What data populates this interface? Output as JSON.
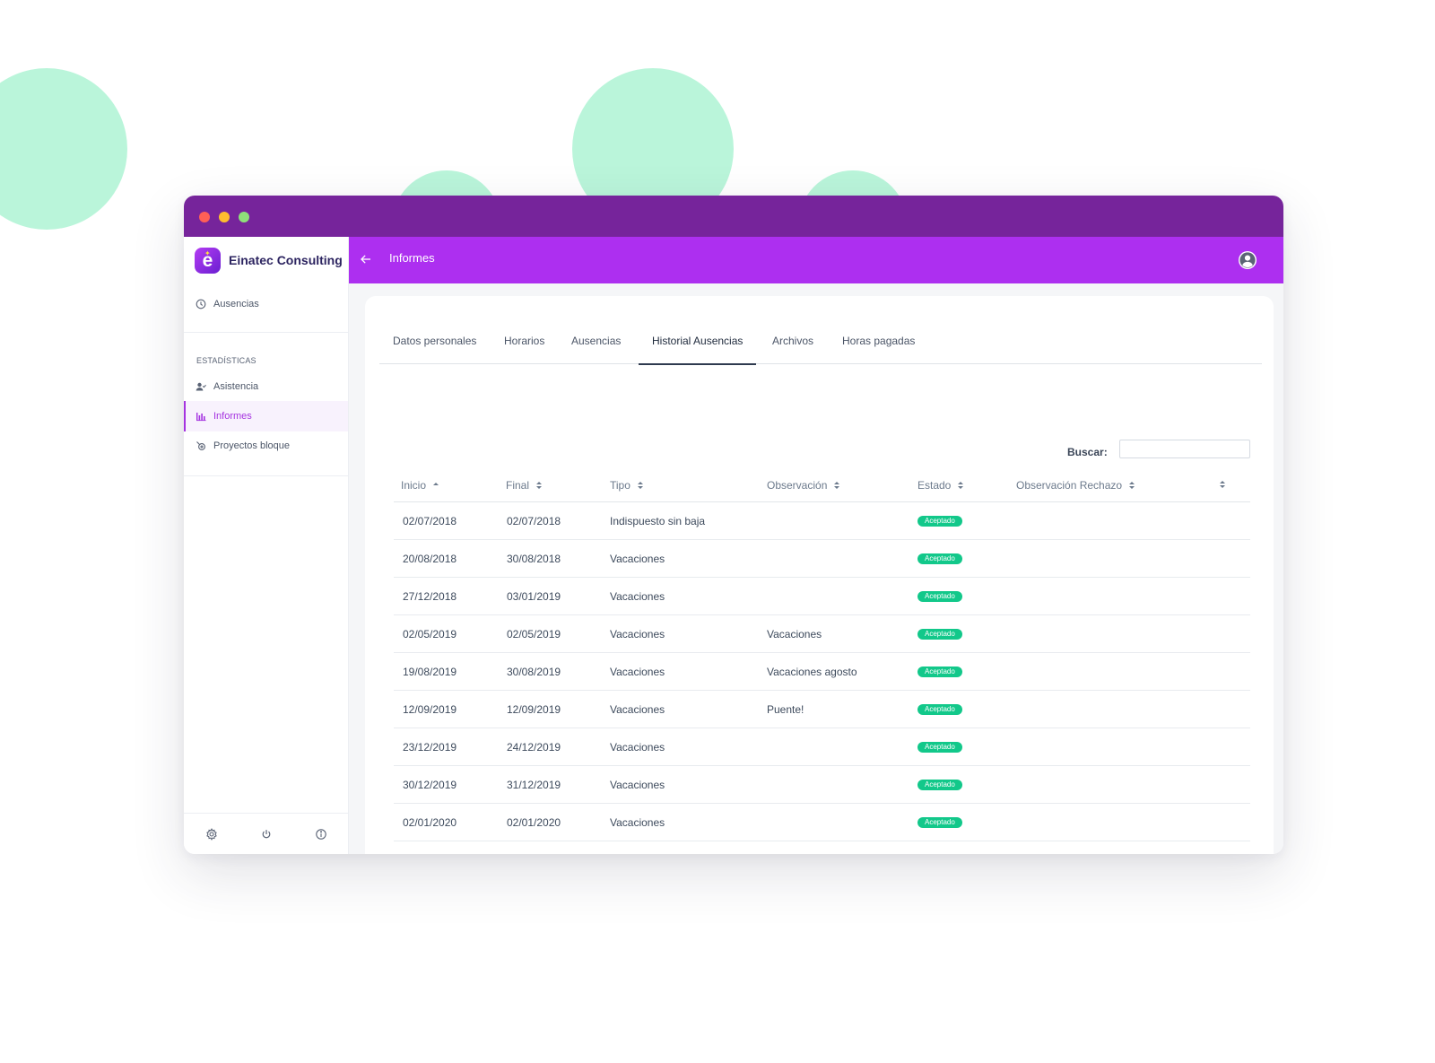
{
  "sidebar": {
    "brand": "Einatec Consulting",
    "brand_letter": "e",
    "items": [
      {
        "label": "Ausencias",
        "icon": "clock-icon"
      },
      {
        "label": "Asistencia",
        "icon": "user-check-icon"
      },
      {
        "label": "Informes",
        "icon": "bar-chart-icon",
        "active": true
      },
      {
        "label": "Proyectos bloque",
        "icon": "project-icon"
      }
    ],
    "section_label": "ESTADÍSTICAS",
    "footer_icons": [
      "gear-icon",
      "power-icon",
      "info-icon"
    ]
  },
  "topbar": {
    "title": "Informes",
    "back_icon": "arrow-left-icon",
    "user_icon": "user-circle-icon"
  },
  "tabs": [
    {
      "label": "Datos personales"
    },
    {
      "label": "Horarios"
    },
    {
      "label": "Ausencias"
    },
    {
      "label": "Historial Ausencias",
      "active": true
    },
    {
      "label": "Archivos"
    },
    {
      "label": "Horas pagadas"
    }
  ],
  "search": {
    "label": "Buscar:",
    "value": ""
  },
  "table": {
    "headers": [
      "Inicio",
      "Final",
      "Tipo",
      "Observación",
      "Estado",
      "Observación Rechazo",
      ""
    ],
    "sort": {
      "column": "Inicio",
      "direction": "asc"
    },
    "rows": [
      {
        "inicio": "02/07/2018",
        "final": "02/07/2018",
        "tipo": "Indispuesto sin baja",
        "observacion": "",
        "estado": "Aceptado",
        "rechazo": ""
      },
      {
        "inicio": "20/08/2018",
        "final": "30/08/2018",
        "tipo": "Vacaciones",
        "observacion": "",
        "estado": "Aceptado",
        "rechazo": ""
      },
      {
        "inicio": "27/12/2018",
        "final": "03/01/2019",
        "tipo": "Vacaciones",
        "observacion": "",
        "estado": "Aceptado",
        "rechazo": ""
      },
      {
        "inicio": "02/05/2019",
        "final": "02/05/2019",
        "tipo": "Vacaciones",
        "observacion": "Vacaciones",
        "estado": "Aceptado",
        "rechazo": ""
      },
      {
        "inicio": "19/08/2019",
        "final": "30/08/2019",
        "tipo": "Vacaciones",
        "observacion": "Vacaciones agosto",
        "estado": "Aceptado",
        "rechazo": ""
      },
      {
        "inicio": "12/09/2019",
        "final": "12/09/2019",
        "tipo": "Vacaciones",
        "observacion": "Puente!",
        "estado": "Aceptado",
        "rechazo": ""
      },
      {
        "inicio": "23/12/2019",
        "final": "24/12/2019",
        "tipo": "Vacaciones",
        "observacion": "",
        "estado": "Aceptado",
        "rechazo": ""
      },
      {
        "inicio": "30/12/2019",
        "final": "31/12/2019",
        "tipo": "Vacaciones",
        "observacion": "",
        "estado": "Aceptado",
        "rechazo": ""
      },
      {
        "inicio": "02/01/2020",
        "final": "02/01/2020",
        "tipo": "Vacaciones",
        "observacion": "",
        "estado": "Aceptado",
        "rechazo": ""
      }
    ]
  },
  "colors": {
    "titlebar": "#76249b",
    "topbar": "#ad2ff0",
    "accent": "#a533e0",
    "badge": "#12c88a",
    "decor": "#baf5da"
  }
}
